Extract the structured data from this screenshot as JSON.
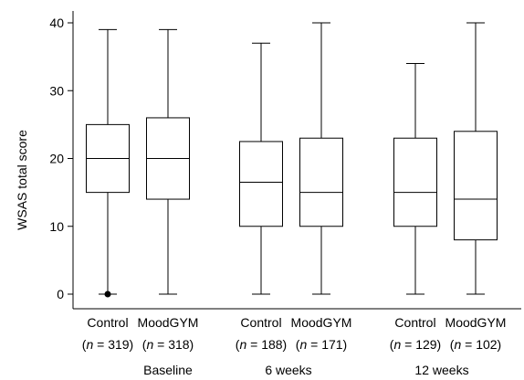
{
  "chart_data": {
    "type": "boxplot",
    "ylabel": "WSAS total score",
    "ylim": [
      0,
      40
    ],
    "yticks": [
      0,
      10,
      20,
      30,
      40
    ],
    "grid": false,
    "legend": "none",
    "groups": [
      {
        "label": "Baseline",
        "boxes": [
          {
            "name": "Control",
            "n_label": "319",
            "min": 0,
            "q1": 15,
            "median": 20,
            "q3": 25,
            "max": 39,
            "outliers": [
              0
            ]
          },
          {
            "name": "MoodGYM",
            "n_label": "318",
            "min": 0,
            "q1": 14,
            "median": 20,
            "q3": 26,
            "max": 39,
            "outliers": []
          }
        ]
      },
      {
        "label": "6 weeks",
        "boxes": [
          {
            "name": "Control",
            "n_label": "188",
            "min": 0,
            "q1": 10,
            "median": 16.5,
            "q3": 22.5,
            "max": 37,
            "outliers": []
          },
          {
            "name": "MoodGYM",
            "n_label": "171",
            "min": 0,
            "q1": 10,
            "median": 15,
            "q3": 23,
            "max": 40,
            "outliers": []
          }
        ]
      },
      {
        "label": "12 weeks",
        "boxes": [
          {
            "name": "Control",
            "n_label": "129",
            "min": 0,
            "q1": 10,
            "median": 15,
            "q3": 23,
            "max": 34,
            "outliers": []
          },
          {
            "name": "MoodGYM",
            "n_label": "102",
            "min": 0,
            "q1": 8,
            "median": 14,
            "q3": 24,
            "max": 40,
            "outliers": []
          }
        ]
      }
    ]
  }
}
